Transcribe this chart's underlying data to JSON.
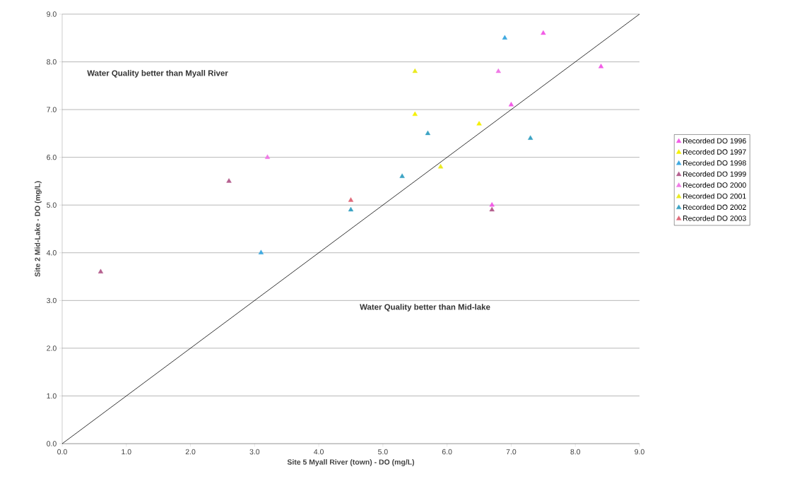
{
  "chart_data": {
    "type": "scatter",
    "xlabel": "Site 5 Myall River (town) - DO (mg/L)",
    "ylabel": "Site 2 Mid-Lake - DO (mg/L)",
    "xlim": [
      0,
      9
    ],
    "ylim": [
      0,
      9
    ],
    "xticks": [
      {
        "value": 0,
        "label": "0.0"
      },
      {
        "value": 1,
        "label": "1.0"
      },
      {
        "value": 2,
        "label": "2.0"
      },
      {
        "value": 3,
        "label": "3.0"
      },
      {
        "value": 4,
        "label": "4.0"
      },
      {
        "value": 5,
        "label": "5.0"
      },
      {
        "value": 6,
        "label": "6.0"
      },
      {
        "value": 7,
        "label": "7.0"
      },
      {
        "value": 8,
        "label": "8.0"
      },
      {
        "value": 9,
        "label": "9.0"
      }
    ],
    "yticks": [
      {
        "value": 0,
        "label": "0.0"
      },
      {
        "value": 1,
        "label": "1.0"
      },
      {
        "value": 2,
        "label": "2.0"
      },
      {
        "value": 3,
        "label": "3.0"
      },
      {
        "value": 4,
        "label": "4.0"
      },
      {
        "value": 5,
        "label": "5.0"
      },
      {
        "value": 6,
        "label": "6.0"
      },
      {
        "value": 7,
        "label": "7.0"
      },
      {
        "value": 8,
        "label": "8.0"
      },
      {
        "value": 9,
        "label": "9.0"
      }
    ],
    "grid": "y",
    "legend": "right",
    "marker": "triangle",
    "annotations": [
      "Water Quality better than Myall River",
      "Water Quality better than Mid-lake"
    ],
    "series": [
      {
        "name": "Recorded DO 1996",
        "color": "#f25ce6",
        "x": [
          7.5,
          8.4,
          7.0,
          6.7
        ],
        "values": [
          8.6,
          7.9,
          7.1,
          5.0
        ]
      },
      {
        "name": "Recorded DO 1997",
        "color": "#f5f000",
        "x": [
          5.5,
          6.5
        ],
        "values": [
          6.9,
          6.7
        ]
      },
      {
        "name": "Recorded DO 1998",
        "color": "#3fa9e0",
        "x": [
          6.9,
          3.1
        ],
        "values": [
          8.5,
          4.0
        ]
      },
      {
        "name": "Recorded DO 1999",
        "color": "#b5608f",
        "x": [
          0.6,
          2.6,
          6.7
        ],
        "values": [
          3.6,
          5.5,
          4.9
        ]
      },
      {
        "name": "Recorded DO 2000",
        "color": "#f07ae6",
        "x": [
          3.2,
          6.8
        ],
        "values": [
          6.0,
          7.8
        ]
      },
      {
        "name": "Recorded DO 2001",
        "color": "#eaea20",
        "x": [
          5.5,
          5.9
        ],
        "values": [
          7.8,
          5.8
        ]
      },
      {
        "name": "Recorded DO 2002",
        "color": "#3ba3c4",
        "x": [
          5.7,
          7.3,
          5.3,
          4.5
        ],
        "values": [
          6.5,
          6.4,
          5.6,
          4.9
        ]
      },
      {
        "name": "Recorded DO 2003",
        "color": "#e06a7a",
        "x": [
          4.5
        ],
        "values": [
          5.1
        ]
      },
      {
        "type": "line",
        "color": "#000000",
        "x": [
          0,
          9
        ],
        "values": [
          0,
          9
        ],
        "marker": "none"
      }
    ]
  }
}
